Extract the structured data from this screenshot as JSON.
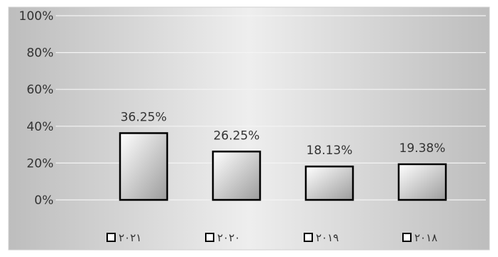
{
  "chart_data": {
    "type": "bar",
    "categories": [
      "٢٠٢١",
      "٢٠٢٠",
      "٢٠١٩",
      "٢٠١٨"
    ],
    "values": [
      36.25,
      26.25,
      18.13,
      19.38
    ],
    "data_labels": [
      "36.25%",
      "26.25%",
      "18.13%",
      "19.38%"
    ],
    "y_ticks": [
      "0%",
      "20%",
      "40%",
      "60%",
      "80%",
      "100%"
    ],
    "y_tick_values": [
      0,
      20,
      40,
      60,
      80,
      100
    ],
    "ylim": [
      0,
      100
    ],
    "grid": true,
    "legend_placement": "bottom"
  },
  "colors": {
    "bar_stroke": "#000000",
    "grid": "#f4f4f4",
    "text": "#333333"
  }
}
